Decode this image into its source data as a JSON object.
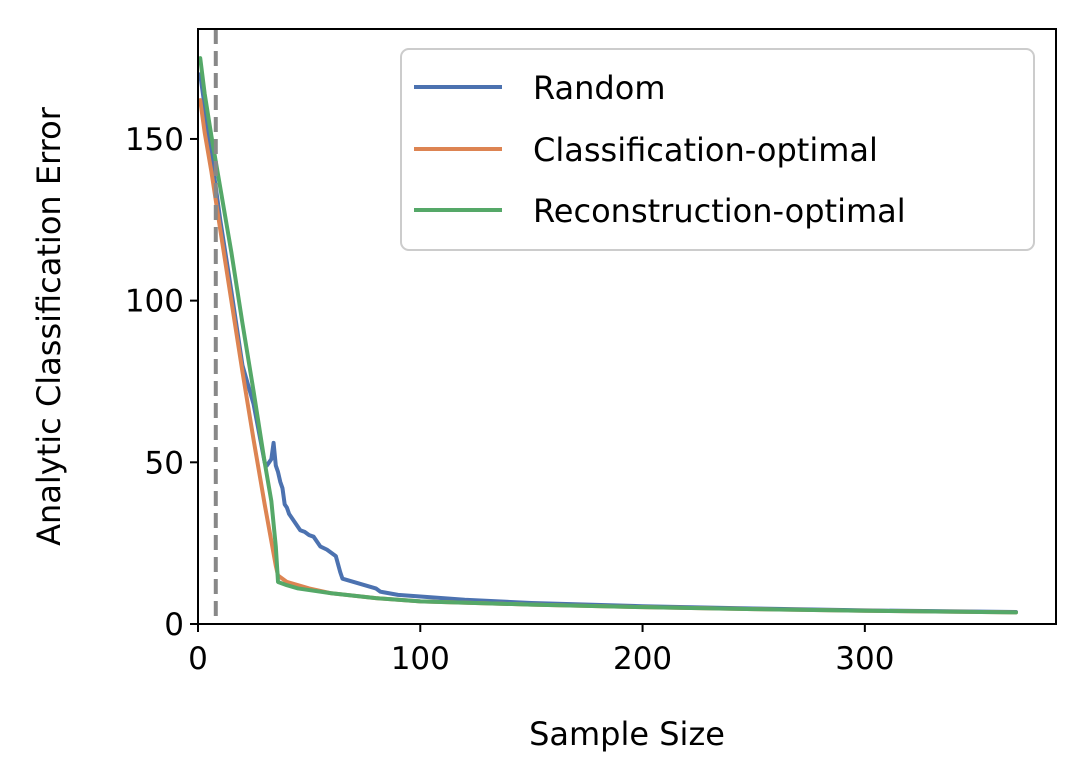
{
  "chart_data": {
    "type": "line",
    "xlabel": "Sample Size",
    "ylabel": "Analytic Classification Error",
    "xlim": [
      0,
      386
    ],
    "ylim": [
      0,
      184
    ],
    "xticks": [
      0,
      100,
      200,
      300
    ],
    "yticks": [
      0,
      50,
      100,
      150
    ],
    "grid": false,
    "legend_position": "upper-right",
    "vline": {
      "x": 8,
      "style": "dashed",
      "color": "#888888"
    },
    "series": [
      {
        "name": "Random",
        "color": "#4c72b0",
        "x": [
          1,
          3,
          6,
          10,
          15,
          20,
          25,
          30,
          31,
          32,
          33,
          34,
          35,
          36,
          37,
          38,
          39,
          40,
          41,
          42,
          44,
          46,
          48,
          50,
          52,
          55,
          58,
          60,
          62,
          64,
          65,
          70,
          75,
          80,
          82,
          90,
          100,
          120,
          150,
          200,
          250,
          300,
          368
        ],
        "y": [
          170,
          160,
          145,
          125,
          103,
          80,
          68,
          50,
          49,
          50,
          51,
          56,
          49,
          47,
          44,
          42,
          37,
          36,
          34,
          33,
          31,
          29,
          28.5,
          27.5,
          27,
          24,
          23,
          22,
          21,
          16,
          14,
          13,
          12,
          11,
          10,
          9,
          8.5,
          7.5,
          6.5,
          5.5,
          4.8,
          4.2,
          3.7
        ]
      },
      {
        "name": "Classification-optimal",
        "color": "#dd8452",
        "x": [
          1,
          3,
          6,
          10,
          15,
          20,
          25,
          30,
          35,
          36,
          38,
          40,
          45,
          50,
          60,
          80,
          100,
          150,
          200,
          250,
          300,
          368
        ],
        "y": [
          162,
          152,
          140,
          122,
          100,
          78,
          57,
          37,
          18,
          15,
          14,
          13,
          12,
          11,
          9.5,
          8,
          7,
          6,
          5.2,
          4.6,
          4.1,
          3.6
        ]
      },
      {
        "name": "Reconstruction-optimal",
        "color": "#55a868",
        "x": [
          1,
          3,
          6,
          10,
          15,
          20,
          25,
          30,
          33,
          35,
          36,
          38,
          40,
          45,
          50,
          60,
          80,
          100,
          150,
          200,
          250,
          300,
          368
        ],
        "y": [
          175,
          164,
          151,
          135,
          115,
          93,
          72,
          50,
          38,
          24,
          13,
          12.5,
          12,
          11,
          10.5,
          9.5,
          8,
          7,
          6,
          5.2,
          4.6,
          4.1,
          3.6
        ]
      }
    ]
  }
}
